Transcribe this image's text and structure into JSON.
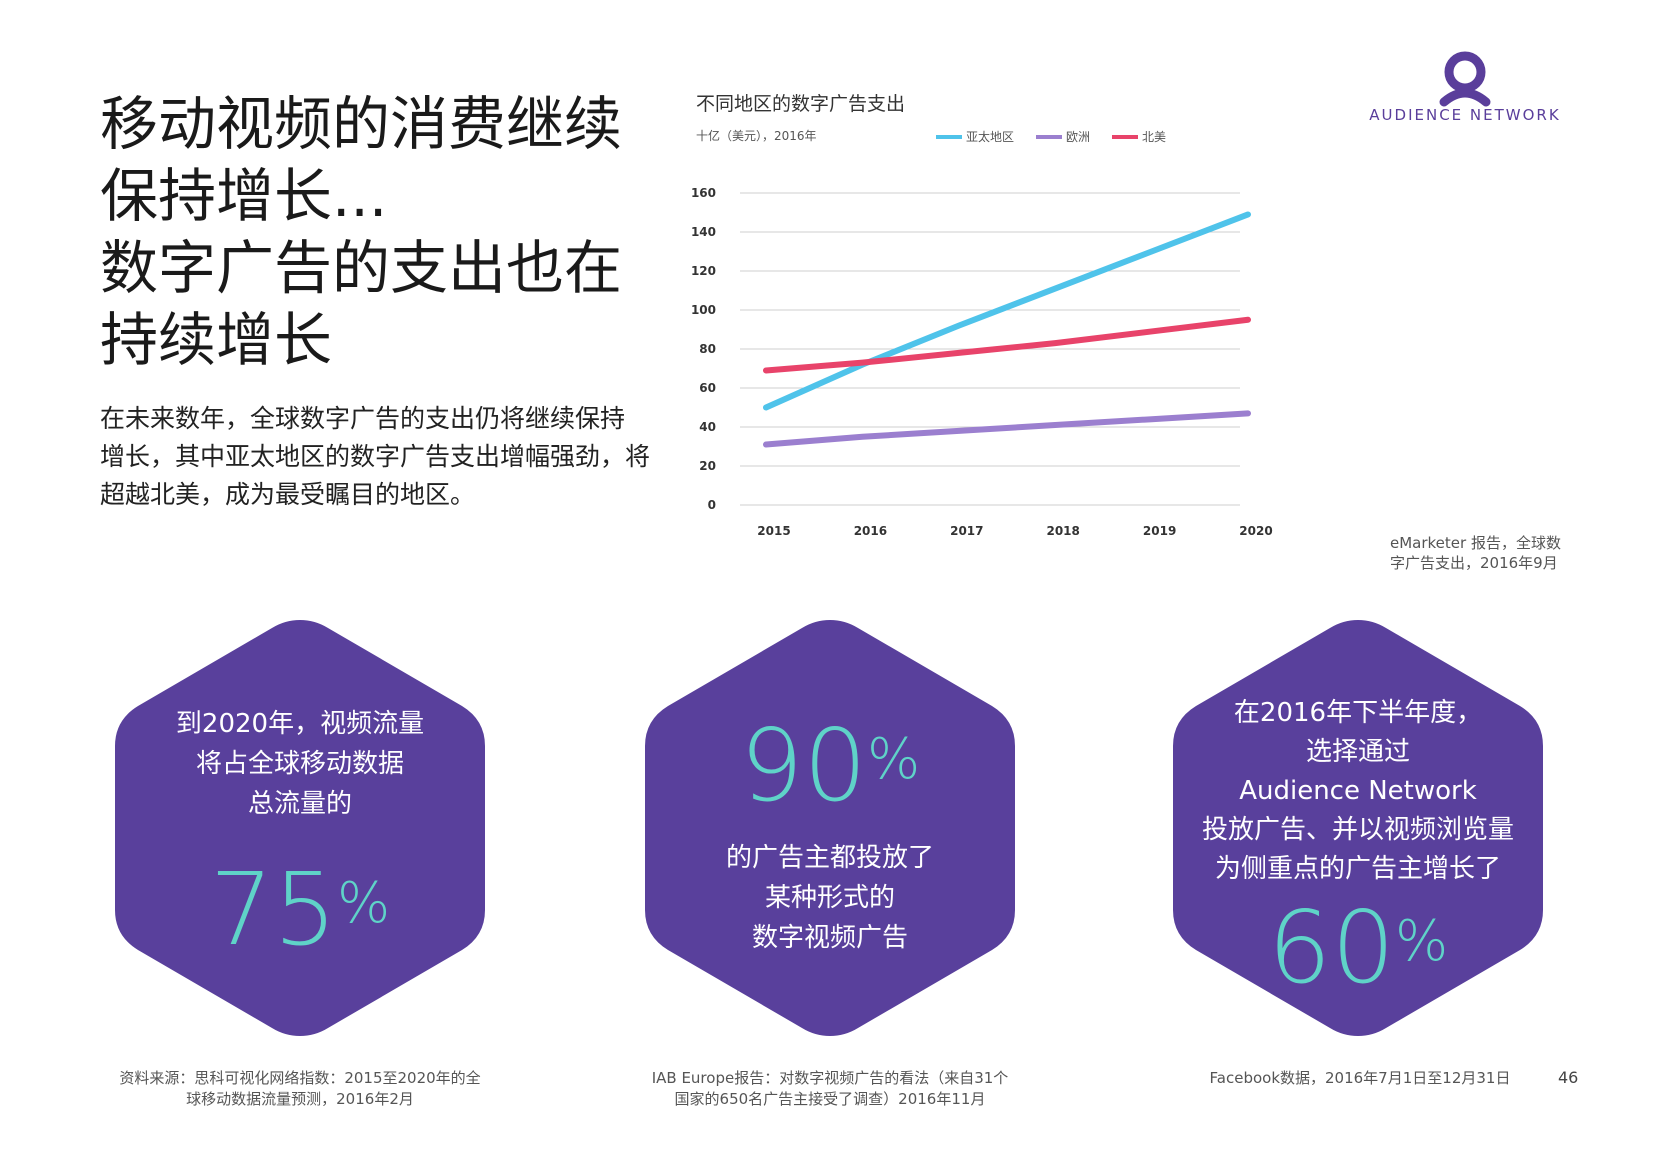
{
  "headline": {
    "lines": [
      "移动视频的消费继续",
      "保持增长...",
      "数字广告的支出也在",
      "持续增长"
    ]
  },
  "intro": {
    "lines": [
      "在未来数年，全球数字广告的支出仍将继续保持",
      "增长，其中亚太地区的数字广告支出增幅强劲，将",
      "超越北美，成为最受瞩目的地区。"
    ]
  },
  "logo": {
    "text": "AUDIENCE NETWORK",
    "color": "#5a3e9b"
  },
  "chart_data": {
    "type": "line",
    "title": "不同地区的数字广告支出",
    "subtitle": "十亿（美元），2016年",
    "x": [
      "2015",
      "2016",
      "2017",
      "2018",
      "2019",
      "2020"
    ],
    "ylim": [
      0,
      160
    ],
    "yticks": [
      0,
      20,
      40,
      60,
      80,
      100,
      120,
      140,
      160
    ],
    "grid": true,
    "legend_position": "top",
    "series": [
      {
        "name": "亚太地区",
        "color": "#4fc3ea",
        "values": [
          50,
          72,
          92,
          111,
          130,
          149
        ]
      },
      {
        "name": "欧洲",
        "color": "#9b7fcf",
        "values": [
          31,
          35,
          38,
          41,
          44,
          47
        ]
      },
      {
        "name": "北美",
        "color": "#e8436a",
        "values": [
          69,
          73,
          78,
          83,
          89,
          95
        ]
      }
    ]
  },
  "chart_source": {
    "lines": [
      "eMarketer 报告，全球数",
      "字广告支出，2016年9月"
    ]
  },
  "hexes": [
    {
      "lines": [
        "到2020年，视频流量",
        "将占全球移动数据",
        "总流量的"
      ],
      "value": "75",
      "unit": "%",
      "source": [
        "资料来源：思科可视化网络指数：2015至2020年的全",
        "球移动数据流量预测，2016年2月"
      ]
    },
    {
      "value": "90",
      "unit": "%",
      "lines": [
        "的广告主都投放了",
        "某种形式的",
        "数字视频广告"
      ],
      "source": [
        "IAB Europe报告：对数字视频广告的看法（来自31个",
        "国家的650名广告主接受了调查）2016年11月"
      ]
    },
    {
      "lines": [
        "在2016年下半年度，",
        "选择通过",
        "Audience Network",
        "投放广告、并以视频浏览量",
        "为侧重点的广告主增长了"
      ],
      "value": "60",
      "unit": "%",
      "source": [
        "Facebook数据，2016年7月1日至12月31日"
      ]
    }
  ],
  "colors": {
    "hex_fill": "#59409c",
    "accent": "#5fd3c8"
  },
  "page_number": "46"
}
